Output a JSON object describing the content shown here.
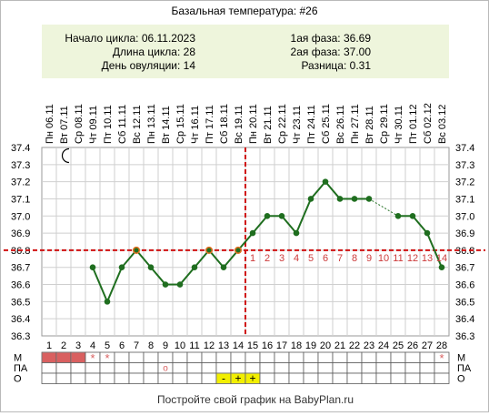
{
  "title": "Базальная температура: #26",
  "summary": {
    "cycle_start": "Начало цикла: 06.11.2023",
    "cycle_length": "Длина цикла: 28",
    "ovulation_day": "День овуляции: 14",
    "phase1": "1ая фаза: 36.69",
    "phase2": "2ая фаза: 37.00",
    "difference": "Разница: 0.31"
  },
  "footer": "Постройте свой график на BabyPlan.ru",
  "colors": {
    "line": "#1f6e1f",
    "point": "#1f6e1f",
    "point_highlight": "#e07020",
    "coverline": "#d01010",
    "ovulation_line": "#d01010",
    "summary_bg": "#eef5dc",
    "menses": "#d96060",
    "marker": "#f2ef00",
    "post_ovulation_numbers": "#cc3b3b"
  },
  "icons": {
    "moon": "crescent-moon-icon"
  },
  "chart_data": {
    "type": "line",
    "title": "Базальная температура: #26",
    "x_dates": [
      "06.11",
      "07.11",
      "08.11",
      "09.11",
      "10.11",
      "11.11",
      "12.11",
      "13.11",
      "14.11",
      "15.11",
      "16.11",
      "17.11",
      "18.11",
      "19.11",
      "20.11",
      "21.11",
      "22.11",
      "23.11",
      "24.11",
      "25.11",
      "26.11",
      "27.11",
      "28.11",
      "29.11",
      "30.11",
      "01.12",
      "02.12",
      "03.12"
    ],
    "x_weekdays": [
      "Пн",
      "Вт",
      "Ср",
      "Чт",
      "Пт",
      "Сб",
      "Вс",
      "Пн",
      "Вт",
      "Ср",
      "Чт",
      "Пт",
      "Сб",
      "Вс",
      "Пн",
      "Вт",
      "Ср",
      "Чт",
      "Пт",
      "Сб",
      "Вс",
      "Пн",
      "Вт",
      "Ср",
      "Чт",
      "Пт",
      "Сб",
      "Вс"
    ],
    "cycle_days": [
      "1",
      "2",
      "3",
      "4",
      "5",
      "6",
      "7",
      "8",
      "9",
      "10",
      "11",
      "12",
      "13",
      "14",
      "15",
      "16",
      "17",
      "18",
      "19",
      "20",
      "21",
      "22",
      "23",
      "24",
      "25",
      "26",
      "27",
      "28"
    ],
    "temperatures": [
      null,
      null,
      null,
      36.7,
      36.5,
      36.7,
      36.8,
      36.7,
      36.6,
      36.6,
      36.7,
      36.8,
      36.7,
      36.8,
      36.9,
      37.0,
      37.0,
      36.9,
      37.1,
      37.2,
      37.1,
      37.1,
      37.1,
      null,
      37.0,
      37.0,
      36.9,
      36.7
    ],
    "highlighted_days": [
      "7",
      "12",
      "14"
    ],
    "dashed_gap": {
      "from_day": "23",
      "to_day": "25"
    },
    "y_ticks": [
      "37.4",
      "37.3",
      "37.2",
      "37.1",
      "37.0",
      "36.9",
      "36.8",
      "36.7",
      "36.6",
      "36.5",
      "36.4",
      "36.3"
    ],
    "ylim": [
      36.3,
      37.4
    ],
    "coverline": 36.8,
    "ovulation_day": "14",
    "post_ovulation_labels": [
      "1",
      "2",
      "3",
      "4",
      "5",
      "6",
      "7",
      "8",
      "9",
      "10",
      "11",
      "12",
      "13",
      "14"
    ],
    "grid": true,
    "indicator_rows": {
      "labels": [
        "М",
        "ПА",
        "О"
      ],
      "M": {
        "filled_days": [
          "1",
          "2",
          "3"
        ],
        "star_days": [
          "4",
          "5",
          "28"
        ],
        "star": "*"
      },
      "PA": {
        "circle_days": [
          "9"
        ],
        "circle": "o"
      },
      "O": {
        "marks": [
          {
            "day": "13",
            "text": "-"
          },
          {
            "day": "14",
            "text": "+"
          },
          {
            "day": "15",
            "text": "+"
          }
        ]
      }
    }
  }
}
